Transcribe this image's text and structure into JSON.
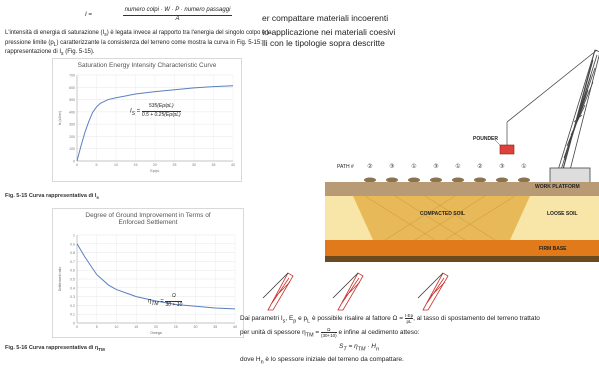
{
  "top_formula": {
    "lhs": "I =",
    "numerator": "numero colpi · W · P · numero passaggi",
    "denominator": "A"
  },
  "left_para": [
    "L'intensità di energia di saturazione (I",
    "s",
    ") è legata invece al rapporto tra l'energia del singolo colpo e la",
    "pressione limite (p",
    "L",
    ") caratterizzante la consistenza del terreno come mostra la curva in Fig. 5-15:",
    "rappresentazione di I",
    "s",
    " (Fig. 5-15)."
  ],
  "right_top_text": [
    "er compattare materiali incoerenti",
    "to applicazione nei materiali coesivi",
    "lli con le tipologie sopra descritte"
  ],
  "fig1": {
    "caption": "Fig. 5-15 Curva rappresentativa di I",
    "caption_sub": "s",
    "formula_lhs": "I",
    "formula_lhs_sub": "S",
    "formula_num": "535(Ep/pL)",
    "formula_den": "0.5 + 0.25(Ep/pL)"
  },
  "fig2": {
    "caption": "Fig. 5-16 Curva rappresentativa di η",
    "caption_sub": "TM",
    "formula": "η",
    "formula_sub": "TM",
    "formula_eq": "=",
    "formula_num": "Ω",
    "formula_den": "30 + 10"
  },
  "diagram": {
    "path_label": "PATH #",
    "path_numbers": [
      "②",
      "③",
      "①",
      "③",
      "①",
      "②",
      "③",
      "①"
    ],
    "pounder_label": "POUNDER",
    "work_platform_label": "WORK PLATFORM",
    "compacted_label": "COMPACTED SOIL",
    "loose_label": "LOOSE SOIL",
    "firm_base_label": "FIRM BASE"
  },
  "bottom_right_text": {
    "line1": "Dai parametri I",
    "line1b": ", E",
    "line1c": " e p",
    "line1d": " è possibile risalire al fattore Ω =",
    "line1e": ", al tasso di spostamento del terreno trattato",
    "line2": "per unità di spessore η",
    "line2b": " =",
    "line2c": " e infine al cedimento atteso:",
    "settlement_formula": "S",
    "settlement_eq": "= η",
    "settlement_tail": " · H",
    "sub_s": "s",
    "sub_p": "p",
    "sub_l": "L",
    "sub_t": "T",
    "sub_tm": "TM",
    "sub_n": "n",
    "omega_num": "I·Ep",
    "omega_den": "pL",
    "eta_num": "Ω",
    "eta_den": "(30+10)",
    "line3": "dove H",
    "line3b": " è lo spessore iniziale del terreno da compattare."
  },
  "chart_data": [
    {
      "type": "line",
      "title": "Saturation Energy Intensity Characteristic Curve",
      "xlabel": "Ep/pL",
      "ylabel": "Is (kJ/m³)",
      "x": [
        0,
        1,
        2,
        3,
        4,
        5,
        6,
        8,
        10,
        15,
        20,
        25,
        30,
        35,
        40
      ],
      "y": [
        0,
        120,
        230,
        320,
        395,
        440,
        470,
        500,
        515,
        545,
        565,
        580,
        595,
        605,
        612
      ],
      "xlim": [
        0,
        40
      ],
      "ylim": [
        0,
        700
      ],
      "yticks": [
        0,
        100,
        200,
        300,
        400,
        500,
        600,
        700
      ],
      "xticks": [
        0,
        5,
        10,
        15,
        20,
        25,
        30,
        35,
        40
      ],
      "grid": true,
      "color": "#5a7fbf"
    },
    {
      "type": "line",
      "title": "Degree of Ground Improvement in Terms of Enforced Settlement",
      "xlabel": "Omega",
      "ylabel": "Settlement ratio",
      "x": [
        0,
        2,
        5,
        8,
        10,
        15,
        20,
        25,
        30,
        35,
        40
      ],
      "y": [
        0.9,
        0.75,
        0.55,
        0.43,
        0.38,
        0.3,
        0.25,
        0.21,
        0.19,
        0.17,
        0.16
      ],
      "xlim": [
        0,
        40
      ],
      "ylim": [
        0,
        1
      ],
      "xticks": [
        0,
        5,
        10,
        15,
        20,
        25,
        30,
        35,
        40
      ],
      "yticks": [
        0,
        0.1,
        0.2,
        0.3,
        0.4,
        0.5,
        0.6,
        0.7,
        0.8,
        0.9,
        1.0
      ],
      "grid": true,
      "color": "#5a7fbf"
    }
  ]
}
